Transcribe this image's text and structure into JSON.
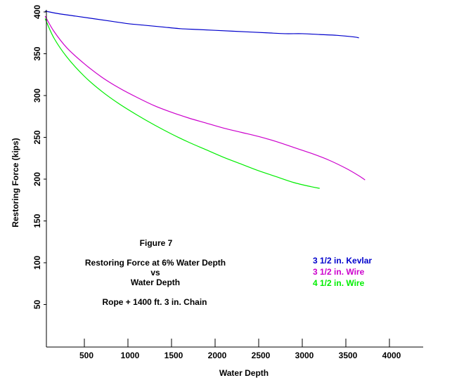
{
  "chart_data": {
    "type": "line",
    "xlabel": "Water Depth",
    "ylabel": "Restoring Force (kips)",
    "xlim": [
      50,
      4400
    ],
    "ylim": [
      0,
      402
    ],
    "xticks": [
      500,
      1000,
      1500,
      2000,
      2500,
      3000,
      3500,
      4000
    ],
    "yticks": [
      50,
      100,
      150,
      200,
      250,
      300,
      350,
      400
    ],
    "grid": false,
    "legend_position": "right-middle",
    "annotations": [
      "Figure  7",
      "Restoring Force at 6% Water Depth",
      "vs",
      "Water Depth",
      "Rope + 1400 ft.  3 in. Chain"
    ],
    "series": [
      {
        "name": "3 1/2 in. Kevlar",
        "color": "#0000cc",
        "x": [
          50,
          200,
          400,
          600,
          800,
          1000,
          1200,
          1400,
          1600,
          1800,
          2000,
          2200,
          2400,
          2600,
          2800,
          3000,
          3200,
          3400,
          3600,
          3650
        ],
        "y": [
          401,
          398,
          395,
          392,
          389,
          386,
          384,
          382,
          380,
          379,
          378,
          377,
          376,
          375,
          374,
          374,
          373,
          372,
          370,
          369
        ]
      },
      {
        "name": "3 1/2 in. Wire",
        "color": "#cc00cc",
        "x": [
          50,
          150,
          300,
          500,
          700,
          900,
          1100,
          1300,
          1500,
          1700,
          1900,
          2100,
          2300,
          2500,
          2700,
          2900,
          3100,
          3300,
          3500,
          3650,
          3720
        ],
        "y": [
          395,
          377,
          357,
          338,
          322,
          309,
          298,
          288,
          280,
          273,
          267,
          261,
          256,
          251,
          245,
          238,
          231,
          223,
          213,
          204,
          199
        ]
      },
      {
        "name": "4 1/2 in. Wire",
        "color": "#00ee00",
        "x": [
          50,
          150,
          300,
          500,
          700,
          900,
          1100,
          1300,
          1500,
          1700,
          1900,
          2100,
          2300,
          2500,
          2700,
          2900,
          3100,
          3200
        ],
        "y": [
          392,
          369,
          346,
          323,
          305,
          290,
          277,
          265,
          254,
          244,
          235,
          226,
          218,
          210,
          203,
          196,
          191,
          189
        ]
      }
    ]
  }
}
